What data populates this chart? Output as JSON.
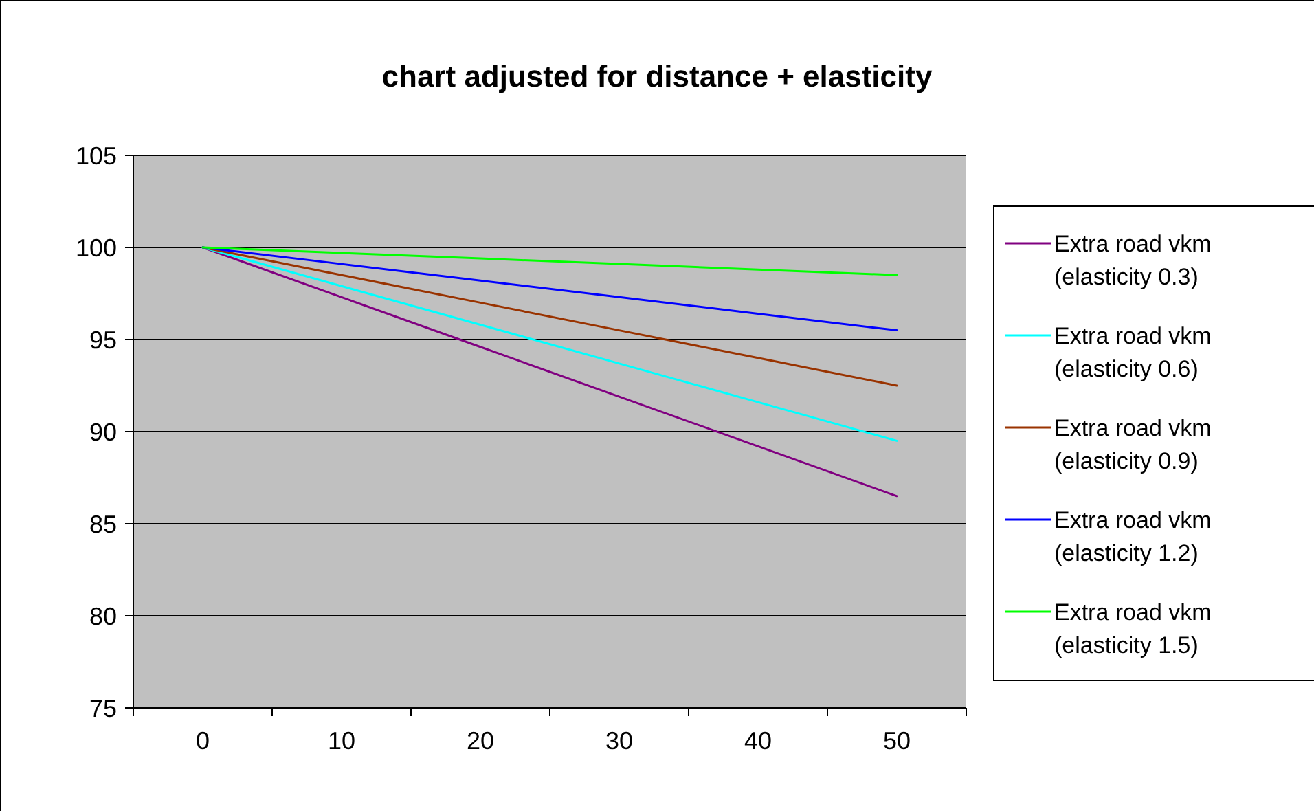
{
  "chart_data": {
    "type": "line",
    "title": "chart adjusted for distance + elasticity",
    "categories": [
      "0",
      "10",
      "20",
      "30",
      "40",
      "50"
    ],
    "ylim": [
      75,
      105
    ],
    "yticks": [
      75,
      80,
      85,
      90,
      95,
      100,
      105
    ],
    "grid": "y",
    "legend": "right",
    "marker": "none",
    "line_style": "solid",
    "series": [
      {
        "name": "Extra road vkm (elasticity 0.3)",
        "color": "#800080",
        "values": [
          100,
          97.3,
          94.6,
          91.9,
          89.2,
          86.5
        ]
      },
      {
        "name": "Extra road vkm (elasticity 0.6)",
        "color": "#00ffff",
        "values": [
          100,
          97.9,
          95.8,
          93.7,
          91.6,
          89.5
        ]
      },
      {
        "name": "Extra road vkm (elasticity 0.9)",
        "color": "#993300",
        "values": [
          100,
          98.5,
          97,
          95.5,
          94,
          92.5
        ]
      },
      {
        "name": "Extra road vkm (elasticity 1.2)",
        "color": "#0000ff",
        "values": [
          100,
          99.1,
          98.2,
          97.3,
          96.4,
          95.5
        ]
      },
      {
        "name": "Extra road vkm (elasticity 1.5)",
        "color": "#00ff00",
        "values": [
          100,
          99.7,
          99.4,
          99.1,
          98.8,
          98.5
        ]
      }
    ]
  }
}
